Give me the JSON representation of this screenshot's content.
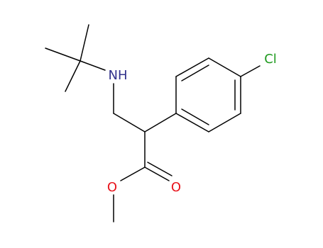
{
  "atoms": [
    {
      "label": "NH"
    },
    {
      "label": "Cl"
    },
    {
      "label": "O"
    },
    {
      "label": "O"
    }
  ]
}
